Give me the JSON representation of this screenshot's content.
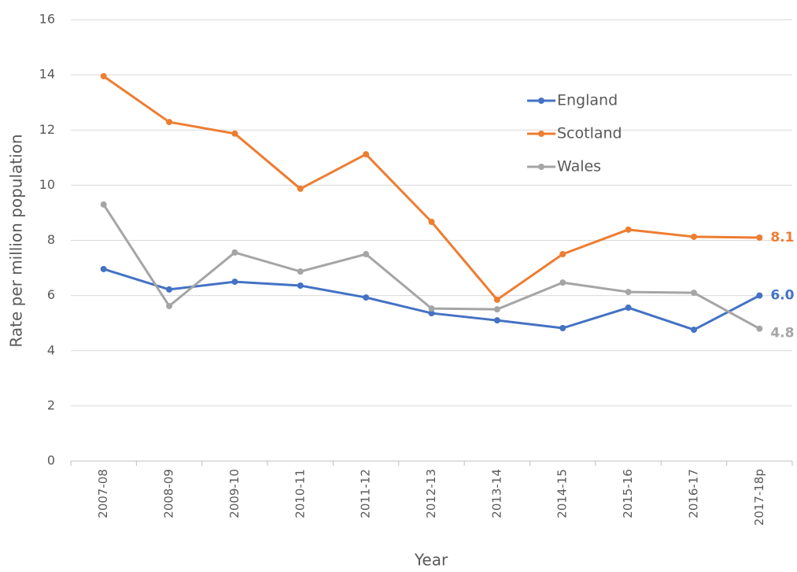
{
  "chart_data": {
    "type": "line",
    "x_label": "Year",
    "y_label": "Rate per million population",
    "categories": [
      "2007-08",
      "2008-09",
      "2009-10",
      "2010-11",
      "2011-12",
      "2012-13",
      "2013-14",
      "2014-15",
      "2015-16",
      "2016-17",
      "2017-18p"
    ],
    "series": [
      {
        "name": "England",
        "color": "#4472c4",
        "values": [
          6.96,
          6.22,
          6.5,
          6.36,
          5.93,
          5.36,
          5.1,
          4.82,
          5.56,
          4.76,
          6.0
        ],
        "value_labels": [
          null,
          null,
          null,
          null,
          null,
          null,
          null,
          null,
          null,
          null,
          "6.0"
        ]
      },
      {
        "name": "Scotland",
        "color": "#ed7d31",
        "values": [
          13.95,
          12.29,
          11.87,
          9.87,
          11.12,
          8.67,
          5.85,
          7.5,
          8.39,
          8.13,
          8.1
        ],
        "value_labels": [
          null,
          null,
          null,
          null,
          null,
          null,
          null,
          null,
          null,
          null,
          "8.1"
        ]
      },
      {
        "name": "Wales",
        "color": "#a5a5a5",
        "values": [
          9.3,
          5.62,
          7.56,
          6.87,
          7.5,
          5.53,
          5.5,
          6.47,
          6.13,
          6.1,
          4.8
        ],
        "value_labels": [
          null,
          null,
          null,
          null,
          null,
          null,
          null,
          null,
          null,
          null,
          "4.8"
        ]
      }
    ],
    "ylim": [
      0,
      16
    ],
    "yticks": [
      0,
      2,
      4,
      6,
      8,
      10,
      12,
      14,
      16
    ],
    "grid": true,
    "legend": "upper right"
  }
}
